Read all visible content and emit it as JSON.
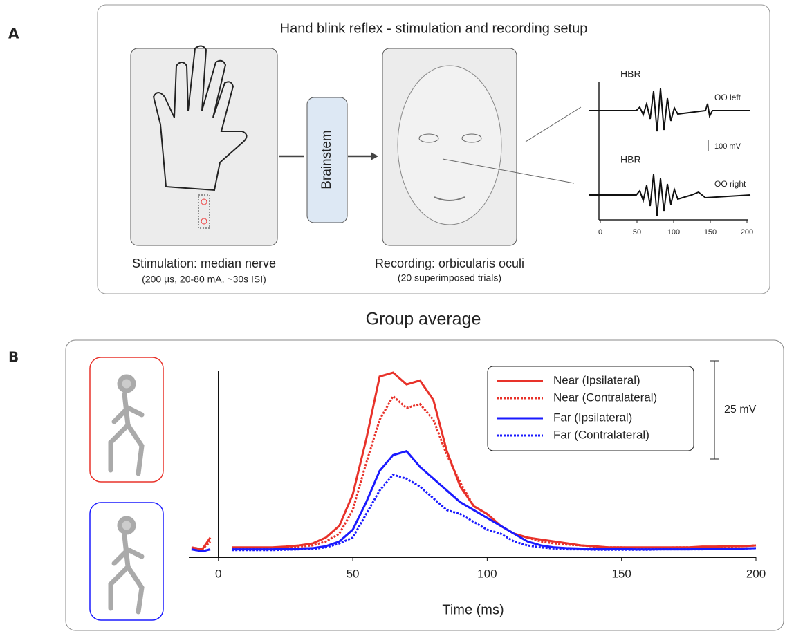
{
  "panel_a": {
    "label": "A",
    "title": "Hand blink reflex - stimulation and recording setup",
    "brainstem": "Brainstem",
    "stimulation": "Stimulation: median nerve",
    "stimulation_params": "(200 µs, 20-80 mA, ~30s ISI)",
    "recording": "Recording: orbicularis oculi",
    "recording_note": "(20 superimposed trials)",
    "traces": [
      {
        "label": "HBR",
        "channel": "OO left"
      },
      {
        "label": "HBR",
        "channel": "OO right"
      }
    ],
    "scale_bar": "100 mV",
    "xlim": [
      0,
      200
    ],
    "xticks": [
      0,
      50,
      100,
      150,
      200
    ]
  },
  "chart_data": {
    "type": "line",
    "label": "B",
    "title": "Group average",
    "x_label": "Time (ms)",
    "xlim": [
      -11,
      200
    ],
    "xticks": [
      0,
      50,
      100,
      150,
      200
    ],
    "ylim": [
      -2,
      48
    ],
    "scale_bar": {
      "value": 25,
      "label": "25 mV"
    },
    "x": [
      -10,
      -6,
      -3,
      0,
      5,
      10,
      15,
      20,
      25,
      30,
      35,
      40,
      45,
      50,
      55,
      60,
      65,
      70,
      75,
      80,
      85,
      90,
      95,
      100,
      105,
      110,
      115,
      120,
      125,
      130,
      135,
      140,
      145,
      150,
      155,
      160,
      165,
      170,
      175,
      180,
      185,
      190,
      195,
      200
    ],
    "series": [
      {
        "name": "Near (Ipsilateral)",
        "color": "#e8322a",
        "dashed": false,
        "values": [
          0.5,
          0,
          3,
          null,
          0.5,
          0.5,
          0.5,
          0.5,
          0.7,
          1,
          1.5,
          3,
          6,
          14,
          28,
          44,
          45,
          42,
          43,
          38,
          25,
          16,
          11,
          9,
          6,
          4,
          3,
          2.5,
          2,
          1.5,
          1,
          0.8,
          0.5,
          0.5,
          0.5,
          0.5,
          0.5,
          0.5,
          0.5,
          0.7,
          0.7,
          0.8,
          0.8,
          1
        ]
      },
      {
        "name": "Near (Contralateral)",
        "color": "#e8322a",
        "dashed": true,
        "values": [
          0.5,
          0,
          2,
          null,
          0.3,
          0.3,
          0.3,
          0.4,
          0.5,
          0.7,
          1,
          2,
          4,
          10,
          22,
          33,
          39,
          36,
          37,
          33,
          24,
          17,
          11,
          9,
          6,
          4,
          3,
          2,
          1.5,
          1.2,
          1,
          0.7,
          0.5,
          0.5,
          0.4,
          0.4,
          0.4,
          0.5,
          0.5,
          0.5,
          0.6,
          0.7,
          0.8,
          1
        ]
      },
      {
        "name": "Far (Ipsilateral)",
        "color": "#1a1aff",
        "dashed": false,
        "values": [
          0,
          -0.5,
          0,
          null,
          0,
          0,
          0,
          0,
          0.1,
          0.2,
          0.3,
          0.8,
          2,
          5,
          12,
          20,
          24,
          25,
          21,
          18,
          15,
          12,
          10,
          8,
          6,
          4,
          2,
          1,
          0.5,
          0.3,
          0.2,
          0.2,
          0.1,
          0.1,
          0,
          0,
          0,
          0,
          0,
          0.1,
          0.1,
          0.2,
          0.2,
          0.3
        ]
      },
      {
        "name": "Far (Contralateral)",
        "color": "#1a1aff",
        "dashed": true,
        "values": [
          0,
          -0.5,
          0,
          null,
          -0.2,
          -0.2,
          -0.2,
          -0.2,
          -0.1,
          0,
          0.1,
          0.5,
          1.5,
          3,
          9,
          15,
          19,
          18,
          16,
          13,
          10,
          9,
          7,
          5,
          4,
          2,
          1,
          0.5,
          0.2,
          0,
          0,
          -0.1,
          -0.1,
          -0.1,
          -0.1,
          -0.1,
          0,
          0,
          0,
          0,
          0.1,
          0.1,
          0.2,
          0.3
        ]
      }
    ]
  }
}
